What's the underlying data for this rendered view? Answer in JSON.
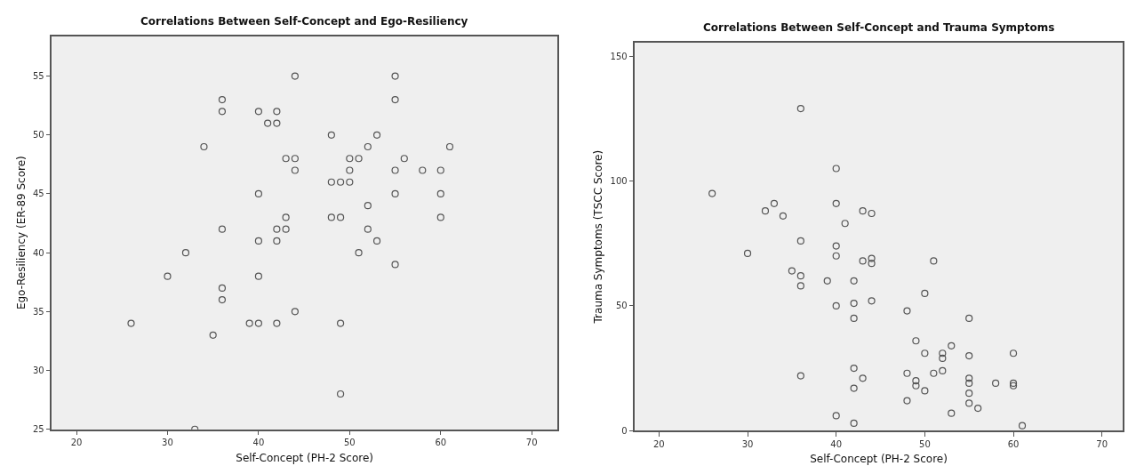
{
  "chart_data": [
    {
      "type": "scatter",
      "title": "Correlations Between Self-Concept and Ego-Resiliency",
      "xlabel": "Self-Concept (PH-2 Score)",
      "ylabel": "Ego-Resiliency (ER-89 Score)",
      "xlim": [
        17.3,
        72.8
      ],
      "ylim": [
        25,
        58.4
      ],
      "xticks": [
        20,
        30,
        40,
        50,
        60,
        70
      ],
      "yticks": [
        25,
        30,
        35,
        40,
        45,
        50,
        55
      ],
      "marker": "circle",
      "series": [
        {
          "color": "#555555",
          "x": [
            26,
            30,
            32,
            33,
            34,
            35,
            36,
            36,
            36,
            36,
            36,
            39,
            40,
            40,
            40,
            40,
            40,
            41,
            42,
            42,
            42,
            42,
            42,
            43,
            43,
            43,
            44,
            44,
            44,
            44,
            48,
            48,
            48,
            49,
            49,
            49,
            49,
            50,
            50,
            50,
            51,
            51,
            52,
            52,
            52,
            53,
            53,
            55,
            55,
            55,
            55,
            55,
            56,
            58,
            60,
            60,
            60,
            61
          ],
          "values": [
            34,
            38,
            40,
            25,
            49,
            33,
            53,
            52,
            42,
            37,
            36,
            34,
            34,
            52,
            45,
            41,
            38,
            51,
            52,
            51,
            42,
            41,
            34,
            48,
            43,
            42,
            55,
            48,
            47,
            35,
            50,
            46,
            43,
            46,
            43,
            34,
            28,
            48,
            47,
            46,
            48,
            40,
            49,
            44,
            42,
            50,
            41,
            55,
            53,
            47,
            45,
            39,
            48,
            47,
            47,
            45,
            43,
            49
          ]
        }
      ]
    },
    {
      "type": "scatter",
      "title": "Correlations Between Self-Concept and Trauma Symptoms",
      "xlabel": "Self-Concept (PH-2 Score)",
      "ylabel": "Trauma Symptoms (TSCC Score)",
      "xlim": [
        17.3,
        72.3
      ],
      "ylim": [
        0,
        155.4
      ],
      "xticks": [
        20,
        30,
        40,
        50,
        60,
        70
      ],
      "yticks": [
        0,
        50,
        100,
        150
      ],
      "marker": "circle",
      "series": [
        {
          "color": "#555555",
          "x": [
            26,
            30,
            32,
            33,
            34,
            35,
            36,
            36,
            36,
            36,
            36,
            39,
            40,
            40,
            40,
            40,
            40,
            40,
            41,
            42,
            42,
            42,
            42,
            42,
            42,
            43,
            43,
            43,
            44,
            44,
            44,
            44,
            48,
            48,
            48,
            49,
            49,
            49,
            50,
            50,
            50,
            51,
            51,
            52,
            52,
            52,
            53,
            53,
            55,
            55,
            55,
            55,
            55,
            55,
            56,
            58,
            60,
            60,
            60,
            61
          ],
          "values": [
            95,
            71,
            88,
            91,
            86,
            64,
            129,
            76,
            62,
            58,
            22,
            60,
            105,
            91,
            74,
            70,
            50,
            6,
            83,
            60,
            51,
            45,
            25,
            17,
            3,
            88,
            68,
            21,
            87,
            69,
            67,
            52,
            48,
            23,
            12,
            36,
            20,
            18,
            55,
            31,
            16,
            68,
            23,
            31,
            29,
            24,
            34,
            7,
            45,
            30,
            21,
            19,
            15,
            11,
            9,
            19,
            31,
            19,
            18,
            2
          ]
        }
      ]
    }
  ]
}
